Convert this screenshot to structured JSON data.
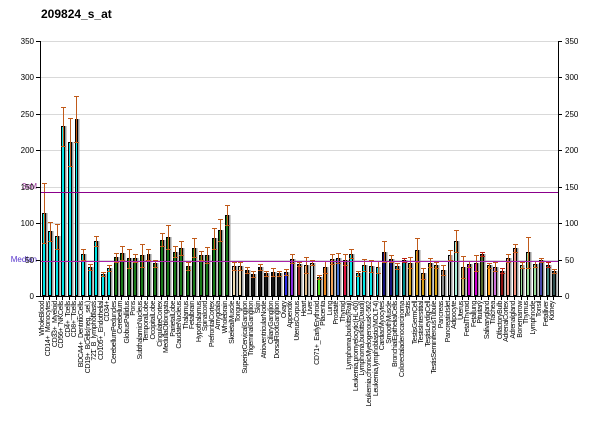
{
  "window": {
    "title": "209824_s_at"
  },
  "chart_data": {
    "type": "bar",
    "title": "209824_s_at",
    "xlabel": "",
    "ylabel": "",
    "ylim": [
      0,
      350
    ],
    "yticks": [
      0,
      50,
      100,
      150,
      200,
      250,
      300,
      350
    ],
    "grid": "horizontal light-gray lines at each y tick",
    "legend": "none",
    "bar_outline_color": "#000000",
    "bar_shadow_color": "#9c9c9c",
    "error_bar_color": "#c05a1a",
    "reference_lines": [
      {
        "label": "3xM",
        "value": 143,
        "line_color": "#8b008b",
        "label_color": "#993399"
      },
      {
        "label": "Median",
        "value": 48,
        "line_color": "#aa22aa",
        "label_color": "#5533cc"
      }
    ],
    "bars": [
      {
        "label": "WholeBlood",
        "value": 114,
        "err": 41,
        "color": "#00e6e6"
      },
      {
        "label": "CD14+_Monocytes",
        "value": 89,
        "err": 13,
        "color": "#00e6e6"
      },
      {
        "label": "CD33+_Myeloid",
        "value": 82,
        "err": 17,
        "color": "#00e6e6"
      },
      {
        "label": "CD56+_NKCells",
        "value": 233,
        "err": 27,
        "color": "#00e6e6"
      },
      {
        "label": "CD4+_Tcells",
        "value": 211,
        "err": 33,
        "color": "#00e6e6"
      },
      {
        "label": "CD8+_Tcells",
        "value": 243,
        "err": 32,
        "color": "#00e6e6"
      },
      {
        "label": "BDCA4+_DentriticCells",
        "value": 57,
        "err": 8,
        "color": "#00e6e6"
      },
      {
        "label": "CD19+_BCells(neg._sel.)",
        "value": 40,
        "err": 4,
        "color": "#00e6e6"
      },
      {
        "label": "721_B_lymphoblasts",
        "value": 76,
        "err": 7,
        "color": "#00e6e6"
      },
      {
        "label": "CD105+_Endothelial",
        "value": 30,
        "err": 3,
        "color": "#00e6e6"
      },
      {
        "label": "CD34+",
        "value": 38,
        "err": 4,
        "color": "#00e6e6"
      },
      {
        "label": "CerebellumPeduncles",
        "value": 53,
        "err": 6,
        "color": "#187818"
      },
      {
        "label": "Cerebellum",
        "value": 59,
        "err": 9,
        "color": "#187818"
      },
      {
        "label": "GlobusPallidus",
        "value": 52,
        "err": 13,
        "color": "#187818"
      },
      {
        "label": "Pons",
        "value": 52,
        "err": 6,
        "color": "#187818"
      },
      {
        "label": "SubthalamicNucleus",
        "value": 56,
        "err": 16,
        "color": "#187818"
      },
      {
        "label": "TemporalLobe",
        "value": 57,
        "err": 8,
        "color": "#187818"
      },
      {
        "label": "OccipitalLobe",
        "value": 45,
        "err": 5,
        "color": "#187818"
      },
      {
        "label": "CingulateCortex",
        "value": 77,
        "err": 9,
        "color": "#187818"
      },
      {
        "label": "MedullaOblongata",
        "value": 81,
        "err": 17,
        "color": "#187818"
      },
      {
        "label": "ParietalLobe",
        "value": 61,
        "err": 7,
        "color": "#187818"
      },
      {
        "label": "CaudateNucleus",
        "value": 66,
        "err": 10,
        "color": "#187818"
      },
      {
        "label": "Thalamus",
        "value": 41,
        "err": 5,
        "color": "#187818"
      },
      {
        "label": "Fetalbrain",
        "value": 66,
        "err": 13,
        "color": "#187818"
      },
      {
        "label": "Hypothalamus",
        "value": 56,
        "err": 6,
        "color": "#187818"
      },
      {
        "label": "Spinalcord",
        "value": 56,
        "err": 11,
        "color": "#187818"
      },
      {
        "label": "PrefrontalCortex",
        "value": 79,
        "err": 14,
        "color": "#187818"
      },
      {
        "label": "Amygdala",
        "value": 91,
        "err": 15,
        "color": "#187818"
      },
      {
        "label": "Wholebrain",
        "value": 111,
        "err": 14,
        "color": "#187818"
      },
      {
        "label": "SkeletalMuscle",
        "value": 41,
        "err": 5,
        "color": "#efddb3"
      },
      {
        "label": "Tongue",
        "value": 41,
        "err": 5,
        "color": "#efddb3"
      },
      {
        "label": "SuperiorCervicalGanglion",
        "value": 36,
        "err": 4,
        "color": "#141414"
      },
      {
        "label": "TrigeminalGanglion",
        "value": 30,
        "err": 4,
        "color": "#141414"
      },
      {
        "label": "Skin",
        "value": 40,
        "err": 4,
        "color": "#141414"
      },
      {
        "label": "AtrioventricularNode",
        "value": 31,
        "err": 3,
        "color": "#141414"
      },
      {
        "label": "CiliaryGanglion",
        "value": 33,
        "err": 6,
        "color": "#141414"
      },
      {
        "label": "DorsalRootGanglion",
        "value": 31,
        "err": 3,
        "color": "#141414"
      },
      {
        "label": "Ovary",
        "value": 33,
        "err": 4,
        "color": "#2a2ae6"
      },
      {
        "label": "Appendix",
        "value": 51,
        "err": 6,
        "color": "#8a2be2"
      },
      {
        "label": "UterusCorpus",
        "value": 44,
        "err": 3,
        "color": "#a32828"
      },
      {
        "label": "Heart",
        "value": 43,
        "err": 11,
        "color": "#deb887"
      },
      {
        "label": "Liver",
        "value": 46,
        "err": 4,
        "color": "#c9dcdc"
      },
      {
        "label": "CD71+_EarlyErythroid",
        "value": 26,
        "err": 3,
        "color": "#55dd22"
      },
      {
        "label": "Placenta",
        "value": 40,
        "err": 8,
        "color": "#e8821e"
      },
      {
        "label": "Lung",
        "value": 51,
        "err": 7,
        "color": "#f2a45a"
      },
      {
        "label": "Prostate",
        "value": 52,
        "err": 7,
        "color": "#4a74d4"
      },
      {
        "label": "Thyroid",
        "value": 50,
        "err": 7,
        "color": "#dc1441"
      },
      {
        "label": "Lymphoma,burkitts(Raji)",
        "value": 58,
        "err": 6,
        "color": "#00e6e6"
      },
      {
        "label": "Leukemia,promyelocytic(HL-60)",
        "value": 31,
        "err": 3,
        "color": "#00e6e6"
      },
      {
        "label": "Lymphoma,burkitts(Daudi)",
        "value": 43,
        "err": 8,
        "color": "#00e6e6"
      },
      {
        "label": "Leukemia,chronicMyelogenousK-562",
        "value": 41,
        "err": 8,
        "color": "#00e6e6"
      },
      {
        "label": "Leukemia,lymphoblastic(MOLT-4)",
        "value": 40,
        "err": 8,
        "color": "#00e6e6"
      },
      {
        "label": "CardiacMyocytes",
        "value": 61,
        "err": 15,
        "color": "#12127a"
      },
      {
        "label": "SmoothMuscle",
        "value": 51,
        "err": 5,
        "color": "#12127a"
      },
      {
        "label": "BronchialEpithelialCells",
        "value": 41,
        "err": 4,
        "color": "#008b8b"
      },
      {
        "label": "Colorectaladenocarcinoma",
        "value": 49,
        "err": 3,
        "color": "#008b8b",
        "err_color": "#bb2211"
      },
      {
        "label": "Testis",
        "value": 46,
        "err": 7,
        "color": "#d4a017"
      },
      {
        "label": "TestisGermCell",
        "value": 63,
        "err": 16,
        "color": "#d4a017"
      },
      {
        "label": "TestisInterstitial",
        "value": 31,
        "err": 7,
        "color": "#d4a017"
      },
      {
        "label": "TestisLeydigCell",
        "value": 46,
        "err": 6,
        "color": "#d4a017"
      },
      {
        "label": "TestisSeminiferousTubule",
        "value": 42,
        "err": 4,
        "color": "#d4a017"
      },
      {
        "label": "Pancreas",
        "value": 36,
        "err": 7,
        "color": "#8c8c8c"
      },
      {
        "label": "PancreaticIslet",
        "value": 56,
        "err": 7,
        "color": "#c4c4c4"
      },
      {
        "label": "Adipocyte",
        "value": 76,
        "err": 15,
        "color": "#a8eed8"
      },
      {
        "label": "Uterus",
        "value": 40,
        "err": 15,
        "color": "#bdb76b"
      },
      {
        "label": "FetalThyroid",
        "value": 44,
        "err": 4,
        "color": "#cc00cc"
      },
      {
        "label": "Fetallung",
        "value": 45,
        "err": 11,
        "color": "#cc00cc"
      },
      {
        "label": "Pituitary",
        "value": 58,
        "err": 3,
        "color": "#556b2f",
        "err_color": "#bb2211"
      },
      {
        "label": "Salivarygland",
        "value": 42,
        "err": 3,
        "color": "#ffa51e"
      },
      {
        "label": "Trachea",
        "value": 40,
        "err": 6,
        "color": "#d06ed6"
      },
      {
        "label": "OlfactoryBulb",
        "value": 35,
        "err": 3,
        "color": "#8b1010",
        "err_color": "#bb2211"
      },
      {
        "label": "AdrenalCortex",
        "value": 52,
        "err": 6,
        "color": "#f4917e"
      },
      {
        "label": "Adrenalgland",
        "value": 66,
        "err": 6,
        "color": "#f4917e"
      },
      {
        "label": "Bonemarrow",
        "value": 43,
        "err": 4,
        "color": "#9cdc9c"
      },
      {
        "label": "Thymus",
        "value": 60,
        "err": 21,
        "color": "#9cdc9c"
      },
      {
        "label": "Lymphnode",
        "value": 44,
        "err": 4,
        "color": "#9cdc9c"
      },
      {
        "label": "Tonsil",
        "value": 49,
        "err": 3,
        "color": "#4646aa"
      },
      {
        "label": "Fetalliver",
        "value": 43,
        "err": 3,
        "color": "#44837a",
        "err_color": "#bb2211"
      },
      {
        "label": "Kidney",
        "value": 34,
        "err": 3,
        "color": "#2f4f4f"
      }
    ]
  }
}
